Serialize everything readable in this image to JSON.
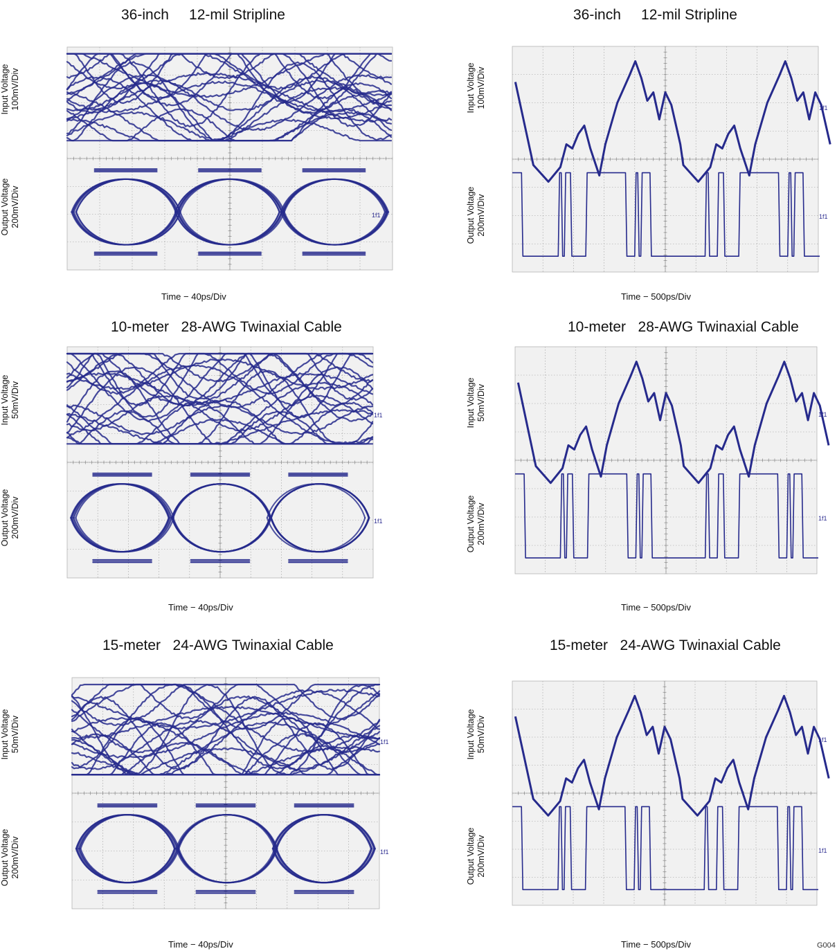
{
  "figure_id": "G004",
  "trace_color": "#262a8c",
  "grid_color": "#9a9a9a",
  "panels": [
    {
      "title": "36-inch     12-mil Stripline",
      "type": "eye",
      "xlabel": "Time − 40ps/Div",
      "input_label": [
        "Input Voltage",
        "100mV/Div"
      ],
      "output_label": [
        "Output Voltage",
        "200mV/Div"
      ],
      "marker": "1f1"
    },
    {
      "title": "36-inch     12-mil Stripline",
      "type": "waveform",
      "xlabel": "Time − 500ps/Div",
      "input_label": [
        "Input Voltage",
        "100mV/Div"
      ],
      "output_label": [
        "Output Voltage",
        "200mV/Div"
      ],
      "marker": "1f1"
    },
    {
      "title": "10-meter   28-AWG Twinaxial Cable",
      "type": "eye",
      "xlabel": "Time − 40ps/Div",
      "input_label": [
        "Input Voltage",
        "50mV/Div"
      ],
      "output_label": [
        "Output Voltage",
        "200mV/Div"
      ],
      "marker": "1f1"
    },
    {
      "title": "10-meter   28-AWG Twinaxial Cable",
      "type": "waveform",
      "xlabel": "Time − 500ps/Div",
      "input_label": [
        "Input Voltage",
        "50mV/Div"
      ],
      "output_label": [
        "Output Voltage",
        "200mV/Div"
      ],
      "marker": "1f1"
    },
    {
      "title": "15-meter   24-AWG Twinaxial Cable",
      "type": "eye",
      "xlabel": "Time − 40ps/Div",
      "input_label": [
        "Input Voltage",
        "50mV/Div"
      ],
      "output_label": [
        "Output Voltage",
        "200mV/Div"
      ],
      "marker": "1f1"
    },
    {
      "title": "15-meter   24-AWG Twinaxial Cable",
      "type": "waveform",
      "xlabel": "Time − 500ps/Div",
      "input_label": [
        "Input Voltage",
        "50mV/Div"
      ],
      "output_label": [
        "Output Voltage",
        "200mV/Div"
      ],
      "marker": "1f1"
    }
  ],
  "chart_data": [
    {
      "type": "line",
      "title": "36-inch     12-mil Stripline",
      "xlabel": "Time − 40ps/Div",
      "ylabel_top": "Input Voltage 100mV/Div",
      "ylabel_bottom": "Output Voltage 200mV/Div",
      "plot": "eye diagram",
      "grid": true,
      "x_divisions": 10,
      "y_divisions": 8
    },
    {
      "type": "line",
      "title": "36-inch     12-mil Stripline",
      "xlabel": "Time − 500ps/Div",
      "ylabel_top": "Input Voltage 100mV/Div",
      "ylabel_bottom": "Output Voltage 200mV/Div",
      "plot": "waveform",
      "grid": true,
      "x_divisions": 10,
      "y_divisions": 8
    },
    {
      "type": "line",
      "title": "10-meter   28-AWG Twinaxial Cable",
      "xlabel": "Time − 40ps/Div",
      "ylabel_top": "Input Voltage 50mV/Div",
      "ylabel_bottom": "Output Voltage 200mV/Div",
      "plot": "eye diagram",
      "grid": true,
      "x_divisions": 10,
      "y_divisions": 8
    },
    {
      "type": "line",
      "title": "10-meter   28-AWG Twinaxial Cable",
      "xlabel": "Time − 500ps/Div",
      "ylabel_top": "Input Voltage 50mV/Div",
      "ylabel_bottom": "Output Voltage 200mV/Div",
      "plot": "waveform",
      "grid": true,
      "x_divisions": 10,
      "y_divisions": 8
    },
    {
      "type": "line",
      "title": "15-meter   24-AWG Twinaxial Cable",
      "xlabel": "Time − 40ps/Div",
      "ylabel_top": "Input Voltage 50mV/Div",
      "ylabel_bottom": "Output Voltage 200mV/Div",
      "plot": "eye diagram",
      "grid": true,
      "x_divisions": 10,
      "y_divisions": 8
    },
    {
      "type": "line",
      "title": "15-meter   24-AWG Twinaxial Cable",
      "xlabel": "Time − 500ps/Div",
      "ylabel_top": "Input Voltage 50mV/Div",
      "ylabel_bottom": "Output Voltage 200mV/Div",
      "plot": "waveform",
      "grid": true,
      "x_divisions": 10,
      "y_divisions": 8
    }
  ]
}
